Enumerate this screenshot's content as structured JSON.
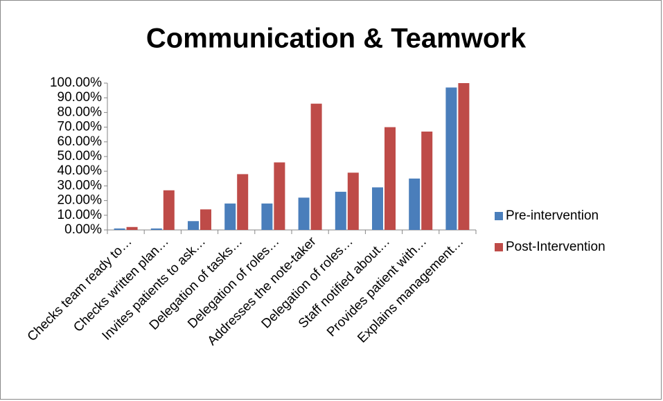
{
  "chart_data": {
    "type": "bar",
    "title": "Communication & Teamwork",
    "categories": [
      "Checks team ready to…",
      "Checks written plan…",
      "Invites patients to ask…",
      "Delegation of tasks…",
      "Delegation of roles…",
      "Addresses the note-taker",
      "Delegation of roles…",
      "Staff notified about…",
      "Provides patient with…",
      "Explains management…"
    ],
    "series": [
      {
        "name": "Pre-intervention",
        "color": "#4a7ebb",
        "values": [
          1,
          1,
          6,
          18,
          18,
          22,
          26,
          29,
          35,
          97
        ]
      },
      {
        "name": "Post-Intervention",
        "color": "#be4b48",
        "values": [
          2,
          27,
          14,
          38,
          46,
          86,
          39,
          70,
          67,
          100
        ]
      }
    ],
    "ylim": [
      0,
      100
    ],
    "yticks": [
      {
        "value": 0,
        "label": "0.00%"
      },
      {
        "value": 10,
        "label": "10.00%"
      },
      {
        "value": 20,
        "label": "20.00%"
      },
      {
        "value": 30,
        "label": "30.00%"
      },
      {
        "value": 40,
        "label": "40.00%"
      },
      {
        "value": 50,
        "label": "50.00%"
      },
      {
        "value": 60,
        "label": "60.00%"
      },
      {
        "value": 70,
        "label": "70.00%"
      },
      {
        "value": 80,
        "label": "80.00%"
      },
      {
        "value": 90,
        "label": "90.00%"
      },
      {
        "value": 100,
        "label": "100.00%"
      }
    ],
    "grid": false,
    "legend": "right"
  }
}
